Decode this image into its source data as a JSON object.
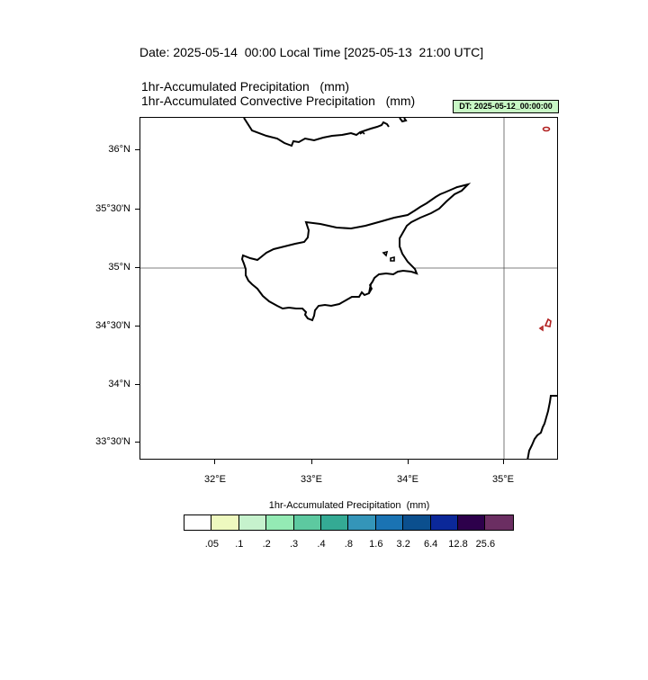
{
  "header": {
    "date_line": "Date: 2025-05-14  00:00 Local Time [2025-05-13  21:00 UTC]",
    "title_line1": "1hr-Accumulated Precipitation   (mm)",
    "title_line2": "1hr-Accumulated Convective Precipitation   (mm)",
    "dt_badge": "DT: 2025-05-12_00:00:00"
  },
  "map": {
    "lat_labels": [
      "36°N",
      "35°30'N",
      "35°N",
      "34°30'N",
      "34°N",
      "33°30'N"
    ],
    "lon_labels": [
      "32°E",
      "33°E",
      "34°E",
      "35°E"
    ],
    "coastline_color": "#000000",
    "precip_contour_color": "#b22222",
    "gridline_color": "#555555"
  },
  "colorbar": {
    "title": "1hr-Accumulated Precipitation  (mm)",
    "levels": [
      ".05",
      ".1",
      ".2",
      ".3",
      ".4",
      ".8",
      "1.6",
      "3.2",
      "6.4",
      "12.8",
      "25.6"
    ],
    "colors": [
      "#ffffff",
      "#eef9bf",
      "#c6f2cd",
      "#94eab4",
      "#5dc9a0",
      "#34aa94",
      "#3495b9",
      "#1a73b3",
      "#0b4f8e",
      "#0b2899",
      "#2d004b",
      "#6b2e62"
    ]
  }
}
